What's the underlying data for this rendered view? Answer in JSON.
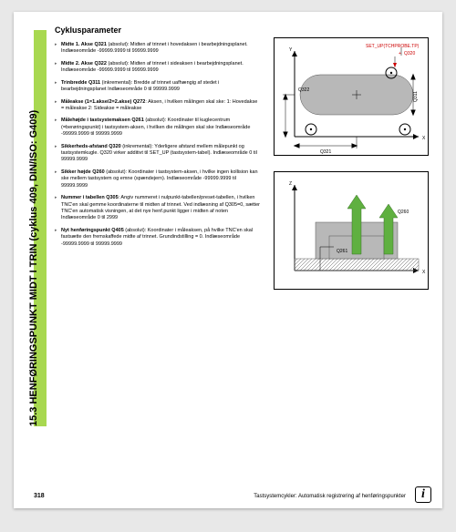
{
  "sideTitle": "15.3 HENFØRINGSPUNKT MIDT I TRIN (cyklus 409, DIN/ISO: G409)",
  "title": "Cyklusparameter",
  "params": [
    {
      "label": "Midte 1. Akse",
      "code": "Q321",
      "text": " (absolut): Midten af trinnet i hovedaksen i bearbejdningsplanet. Indlæseområde -99999.9999 til 99999.9999"
    },
    {
      "label": "Midte 2. Akse",
      "code": "Q322",
      "text": " (absolut): Midten af trinnet i sideaksen i bearbejdningsplanet. Indlæseområde -99999.9999 til 99999.9999"
    },
    {
      "label": "Trinbredde",
      "code": "Q311",
      "text": " (inkremental): Bredde af trinnet uafhængig af stedet i bearbejdningsplanet Indlæseområde 0 til 99999.9999"
    },
    {
      "label": "Måleakse (1=1.akse/2=2.akse)",
      "code": "Q272",
      "text": ": Aksen, i hvilken målingen skal ske:\n1: Hovedakse = måleakse\n2: Sideakse = måleakse"
    },
    {
      "label": "Målehøjde i tastsystemaksen",
      "code": "Q261",
      "text": " (absolut): Koordinater til kuglecentrum (=berøringspunkt) i tastsystem-aksen, i hvilken die målingen skal ske Indlæseområde -99999.9999 til 99999.9999"
    },
    {
      "label": "Sikkerheds-afstand",
      "code": "Q320",
      "text": " (inkremental): Yderligere afstand mellem målepunkt og tastsystemkugle. Q320 virker additivt til SET_UP (tastsystem-tabel). Indlæseområde 0 til 99999.9999"
    },
    {
      "label": "Sikker højde",
      "code": "Q260",
      "text": " (absolut): Koordinater i tastsystem-aksen, i hvilke ingen kollision kan ske mellem tastsystem og emne (spændejern). Indlæseområde -99999.9999 til 99999.9999"
    },
    {
      "label": "Nummer i tabellen",
      "code": "Q305",
      "text": ": Angiv nummeret i nulpunkt-tabellen/preset-tabellen, i hvilken TNC'en skal gemme koordinaterne til midten af trinnet. Ved indlæsning af Q305=0, sætter TNC'en automatisk visningen, at det nye henf.punkt ligger i midten af noten Indlæseområde 0 til 2999"
    },
    {
      "label": "Nyt henføringspunkt",
      "code": "Q405",
      "text": " (absolut): Koordinater i måleaksen, på hvilke TNC'en skal fastsætte den fremskaffede midte af trinnet. Grundindstilling = 0. Indlæseområde -99999.9999 til 99999.9999"
    }
  ],
  "pageNum": "318",
  "footer": "Tastsystemcykler: Automatisk registrering af henføringspunkter",
  "diag1": {
    "setupLabel": "SET_UP(TCHPROBE.TP)",
    "q320": "Q320",
    "q321": "Q321",
    "q322": "Q322",
    "q311": "Q311",
    "yLabel": "Y",
    "xLabel": "X"
  },
  "diag2": {
    "q260": "Q260",
    "q261": "Q261",
    "zLabel": "Z",
    "xLabel": "X"
  },
  "infoChar": "i"
}
